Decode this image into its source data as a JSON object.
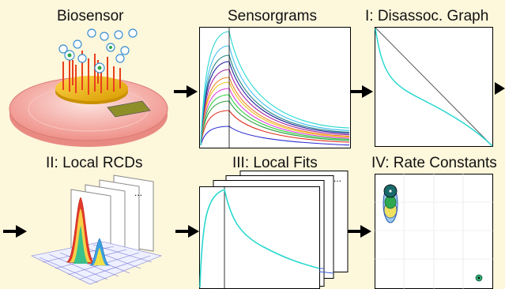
{
  "titles": {
    "biosensor": "Biosensor",
    "sensorgrams": "Sensorgrams",
    "disassoc_graph": "I: Disassoc. Graph",
    "local_rcds": "II: Local RCDs",
    "local_fits": "III: Local Fits",
    "rate_constants": "IV: Rate Constants"
  },
  "ellipsis": "...",
  "colors": {
    "background": "#fdf7dc",
    "cyan": "#29d8d0",
    "arrow": "#000000",
    "gold": "#e0a800",
    "disk": "#f4a7a0"
  },
  "icons": [
    "arrow-right-icon",
    "biosensor-chip-icon",
    "surface-plot-icon"
  ]
}
